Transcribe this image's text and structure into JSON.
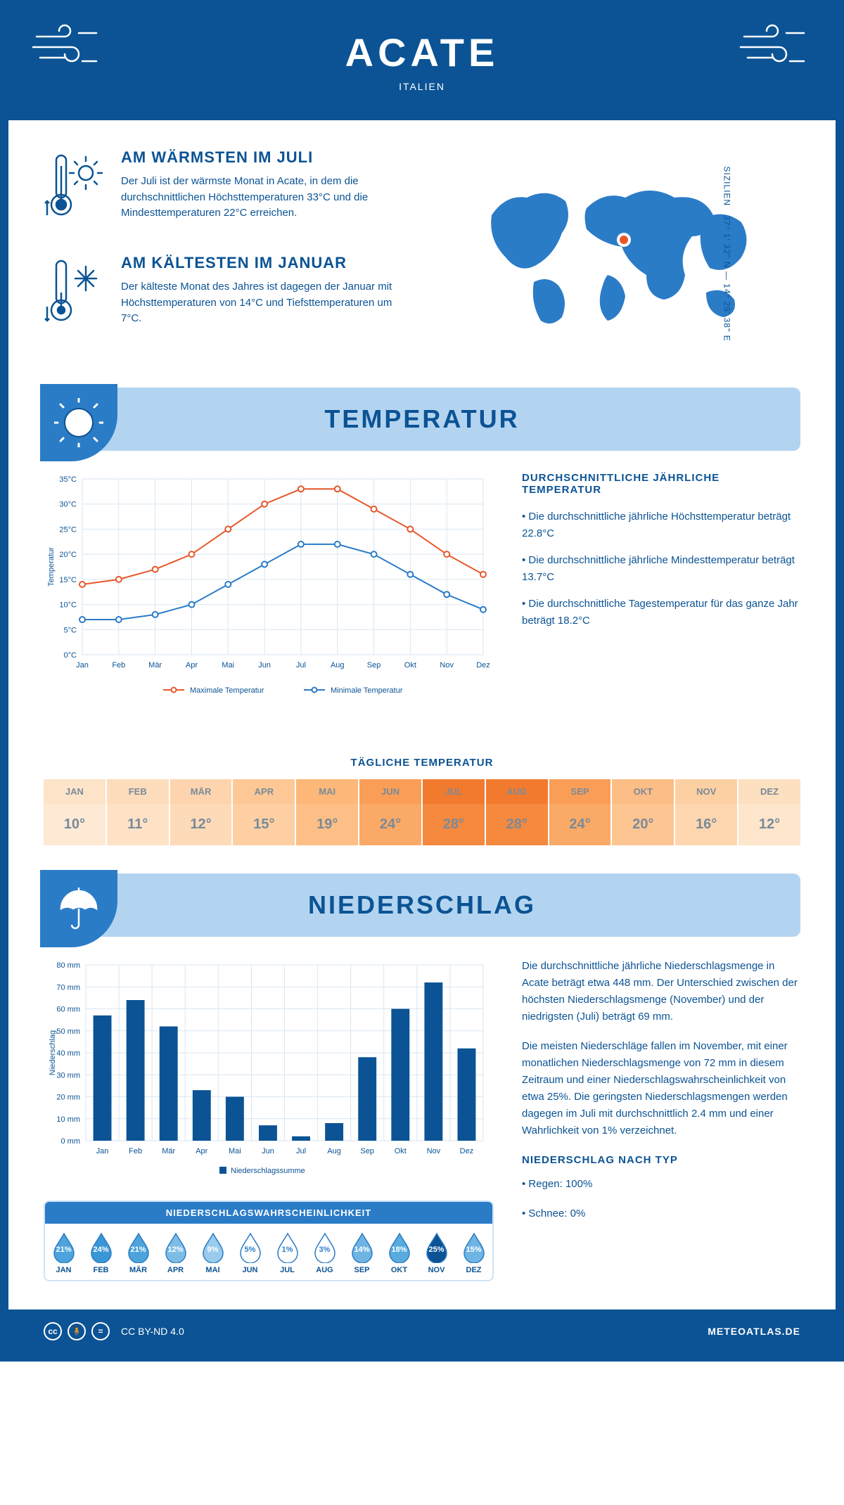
{
  "header": {
    "title": "ACATE",
    "country": "ITALIEN"
  },
  "coords": {
    "region": "SIZILIEN",
    "lat": "37° 1' 32\" N",
    "lon": "14° 29' 38\" E"
  },
  "facts": {
    "warm": {
      "title": "AM WÄRMSTEN IM JULI",
      "text": "Der Juli ist der wärmste Monat in Acate, in dem die durchschnittlichen Höchsttemperaturen 33°C und die Mindesttemperaturen 22°C erreichen."
    },
    "cold": {
      "title": "AM KÄLTESTEN IM JANUAR",
      "text": "Der kälteste Monat des Jahres ist dagegen der Januar mit Höchsttemperaturen von 14°C und Tiefsttemperaturen um 7°C."
    }
  },
  "sections": {
    "temperature": "TEMPERATUR",
    "precipitation": "NIEDERSCHLAG"
  },
  "temp_chart": {
    "type": "line",
    "months": [
      "Jan",
      "Feb",
      "Mär",
      "Apr",
      "Mai",
      "Jun",
      "Jul",
      "Aug",
      "Sep",
      "Okt",
      "Nov",
      "Dez"
    ],
    "max_series": {
      "label": "Maximale Temperatur",
      "color": "#e8572b",
      "values": [
        14,
        15,
        17,
        20,
        25,
        30,
        33,
        33,
        29,
        25,
        20,
        16
      ]
    },
    "min_series": {
      "label": "Minimale Temperatur",
      "color": "#2b7cc7",
      "values": [
        7,
        7,
        8,
        10,
        14,
        18,
        22,
        22,
        20,
        16,
        12,
        9
      ]
    },
    "ylabel": "Temperatur",
    "ylim": [
      0,
      35
    ],
    "ytick_step": 5,
    "grid_color": "#d9e6f2",
    "background": "#ffffff",
    "marker": "circle"
  },
  "temp_side": {
    "title": "DURCHSCHNITTLICHE JÄHRLICHE TEMPERATUR",
    "bullet1": "• Die durchschnittliche jährliche Höchsttemperatur beträgt 22.8°C",
    "bullet2": "• Die durchschnittliche jährliche Mindesttemperatur beträgt 13.7°C",
    "bullet3": "• Die durchschnittliche Tagestemperatur für das ganze Jahr beträgt 18.2°C"
  },
  "daily": {
    "title": "TÄGLICHE TEMPERATUR",
    "months": [
      "JAN",
      "FEB",
      "MÄR",
      "APR",
      "MAI",
      "JUN",
      "JUL",
      "AUG",
      "SEP",
      "OKT",
      "NOV",
      "DEZ"
    ],
    "values": [
      "10°",
      "11°",
      "12°",
      "15°",
      "19°",
      "24°",
      "28°",
      "28°",
      "24°",
      "20°",
      "16°",
      "12°"
    ],
    "head_colors": [
      "#fde4c9",
      "#fddcbb",
      "#fdd4ad",
      "#fdc896",
      "#fdb778",
      "#fa9e57",
      "#f27a2e",
      "#f27a2e",
      "#fa9e57",
      "#fdbd86",
      "#fdd0a4",
      "#fde0c0"
    ],
    "val_colors": [
      "#fee9d5",
      "#fde2c6",
      "#fddab8",
      "#fdcfa2",
      "#fdbf86",
      "#fba966",
      "#f5893e",
      "#f5893e",
      "#fba966",
      "#fdc592",
      "#fdd6b0",
      "#fde6cc"
    ]
  },
  "precip_chart": {
    "type": "bar",
    "months": [
      "Jan",
      "Feb",
      "Mär",
      "Apr",
      "Mai",
      "Jun",
      "Jul",
      "Aug",
      "Sep",
      "Okt",
      "Nov",
      "Dez"
    ],
    "values": [
      57,
      64,
      52,
      23,
      20,
      7,
      2,
      8,
      38,
      60,
      72,
      42
    ],
    "ylabel": "Niederschlag",
    "legend": "Niederschlagssumme",
    "ylim": [
      0,
      80
    ],
    "ytick_step": 10,
    "bar_color": "#0b5394",
    "grid_color": "#d9e6f2"
  },
  "precip_text": {
    "p1": "Die durchschnittliche jährliche Niederschlagsmenge in Acate beträgt etwa 448 mm. Der Unterschied zwischen der höchsten Niederschlagsmenge (November) und der niedrigsten (Juli) beträgt 69 mm.",
    "p2": "Die meisten Niederschläge fallen im November, mit einer monatlichen Niederschlagsmenge von 72 mm in diesem Zeitraum und einer Niederschlagswahrscheinlichkeit von etwa 25%. Die geringsten Niederschlagsmengen werden dagegen im Juli mit durchschnittlich 2.4 mm und einer Wahrlichkeit von 1% verzeichnet.",
    "type_title": "NIEDERSCHLAG NACH TYP",
    "type1": "• Regen: 100%",
    "type2": "• Schnee: 0%"
  },
  "prob": {
    "title": "NIEDERSCHLAGSWAHRSCHEINLICHKEIT",
    "months": [
      "JAN",
      "FEB",
      "MÄR",
      "APR",
      "MAI",
      "JUN",
      "JUL",
      "AUG",
      "SEP",
      "OKT",
      "NOV",
      "DEZ"
    ],
    "values": [
      "21%",
      "24%",
      "21%",
      "12%",
      "9%",
      "5%",
      "1%",
      "3%",
      "14%",
      "18%",
      "25%",
      "15%"
    ],
    "fills": [
      "#4da3db",
      "#3a97d6",
      "#4da3db",
      "#7dbde5",
      "#98cbec",
      "#ffffff",
      "#ffffff",
      "#ffffff",
      "#6fb4e2",
      "#58abde",
      "#0b5394",
      "#6fb4e2"
    ],
    "text_colors": [
      "#ffffff",
      "#ffffff",
      "#ffffff",
      "#ffffff",
      "#ffffff",
      "#2b7cc7",
      "#2b7cc7",
      "#2b7cc7",
      "#ffffff",
      "#ffffff",
      "#ffffff",
      "#ffffff"
    ]
  },
  "footer": {
    "license": "CC BY-ND 4.0",
    "site": "METEOATLAS.DE"
  }
}
